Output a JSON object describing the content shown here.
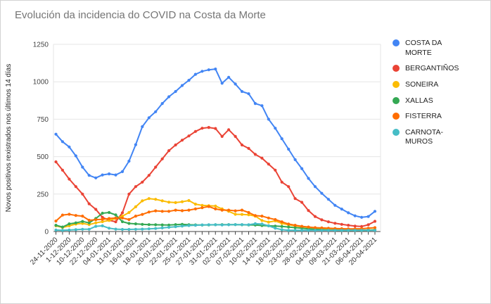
{
  "header": {
    "title": "Evolución da incidencia do COVID na Costa da Morte",
    "title_color": "#757575"
  },
  "window": {
    "background": "#ffffff",
    "border_color": "#d2d2d2",
    "gridline_color": "#e6e6e6",
    "axis_color": "#424242"
  },
  "chart_data": {
    "type": "line",
    "title": "Evolución da incidencia do COVID na Costa da Morte",
    "xlabel": "",
    "ylabel": "Novos positivos rexistrados nos últimos 14 días",
    "ylim": [
      0,
      1250
    ],
    "yticks": [
      0,
      250,
      500,
      750,
      1000,
      1250
    ],
    "grid": true,
    "legend_position": "right",
    "n_points": 49,
    "label_every_n_points": 2,
    "x_tick_labels": [
      "24-11-2020",
      "1-12-2020",
      "10-12-2020",
      "22-12-2020",
      "04-01-2021",
      "11-01-2021",
      "16-01-2021",
      "18-01-2021",
      "20-01-2021",
      "22-01-2021",
      "25-01-2021",
      "27-01-2021",
      "31-01-2021",
      "02-02-2021",
      "07-02-2021",
      "10-02-2021",
      "14-02-2021",
      "18-02-2021",
      "23-02-2021",
      "28-02-2021",
      "04-03-2021",
      "09-03-2021",
      "21-03-2021",
      "06-04-2021",
      "20-04-2021"
    ],
    "series": [
      {
        "name": "COSTA DA MORTE",
        "color": "#4285F4",
        "values": [
          650,
          600,
          565,
          505,
          430,
          375,
          358,
          378,
          385,
          378,
          400,
          470,
          580,
          700,
          760,
          800,
          855,
          900,
          935,
          975,
          1010,
          1050,
          1070,
          1080,
          1085,
          990,
          1030,
          985,
          935,
          920,
          855,
          840,
          750,
          690,
          620,
          550,
          480,
          420,
          355,
          300,
          255,
          215,
          175,
          150,
          125,
          105,
          95,
          100,
          135
        ]
      },
      {
        "name": "BERGANTIÑOS",
        "color": "#EA4335",
        "values": [
          465,
          410,
          350,
          300,
          250,
          185,
          148,
          95,
          75,
          65,
          125,
          250,
          300,
          330,
          375,
          430,
          485,
          540,
          578,
          610,
          638,
          668,
          690,
          695,
          688,
          635,
          680,
          635,
          578,
          555,
          515,
          490,
          450,
          410,
          330,
          300,
          220,
          195,
          140,
          100,
          78,
          65,
          55,
          48,
          42,
          36,
          34,
          45,
          68
        ]
      },
      {
        "name": "SONEIRA",
        "color": "#FBBC04",
        "values": [
          38,
          27,
          38,
          50,
          54,
          46,
          58,
          66,
          74,
          87,
          103,
          127,
          165,
          205,
          220,
          215,
          205,
          196,
          193,
          199,
          207,
          183,
          175,
          172,
          170,
          151,
          135,
          115,
          114,
          112,
          103,
          74,
          63,
          71,
          54,
          45,
          38,
          32,
          27,
          24,
          20,
          18,
          15,
          13,
          11,
          10,
          9,
          10,
          12
        ]
      },
      {
        "name": "XALLAS",
        "color": "#34A853",
        "values": [
          42,
          30,
          51,
          58,
          67,
          58,
          87,
          122,
          127,
          111,
          66,
          54,
          51,
          48,
          46,
          45,
          44,
          43,
          46,
          48,
          45,
          44,
          43,
          44,
          45,
          46,
          46,
          46,
          45,
          44,
          43,
          40,
          38,
          36,
          34,
          30,
          26,
          22,
          18,
          15,
          12,
          10,
          9,
          8,
          8,
          8,
          8,
          9,
          10
        ]
      },
      {
        "name": "FISTERRA",
        "color": "#FF6D01",
        "values": [
          70,
          110,
          115,
          107,
          103,
          75,
          79,
          82,
          87,
          90,
          90,
          80,
          103,
          114,
          130,
          138,
          135,
          135,
          143,
          139,
          143,
          151,
          159,
          167,
          151,
          143,
          143,
          138,
          143,
          127,
          106,
          103,
          90,
          80,
          65,
          50,
          42,
          35,
          30,
          26,
          24,
          22,
          20,
          19,
          18,
          18,
          19,
          22,
          26
        ]
      },
      {
        "name": "CARNOTA-MUROS",
        "color": "#46BDC6",
        "values": [
          10,
          8,
          10,
          12,
          15,
          15,
          35,
          38,
          22,
          16,
          14,
          14,
          15,
          16,
          18,
          20,
          24,
          28,
          32,
          36,
          40,
          42,
          44,
          45,
          45,
          44,
          45,
          46,
          46,
          45,
          52,
          50,
          38,
          22,
          12,
          8,
          8,
          8,
          8,
          8,
          8,
          8,
          8,
          8,
          8,
          8,
          8,
          8,
          8
        ]
      }
    ]
  }
}
